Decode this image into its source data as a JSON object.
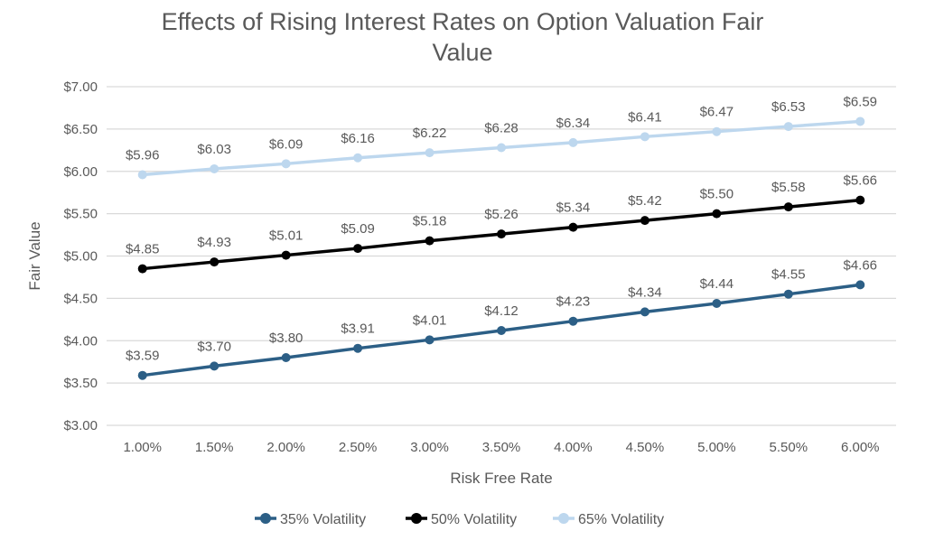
{
  "chart_data": {
    "type": "line",
    "title_lines": [
      "Effects of Rising Interest Rates on Option Valuation Fair",
      "Value"
    ],
    "xlabel": "Risk Free Rate",
    "ylabel": "Fair Value",
    "categories": [
      "1.00%",
      "1.50%",
      "2.00%",
      "2.50%",
      "3.00%",
      "3.50%",
      "4.00%",
      "4.50%",
      "5.00%",
      "5.50%",
      "6.00%"
    ],
    "y_ticks": [
      "$3.00",
      "$3.50",
      "$4.00",
      "$4.50",
      "$5.00",
      "$5.50",
      "$6.00",
      "$6.50",
      "$7.00"
    ],
    "ylim": [
      3.0,
      7.0
    ],
    "grid": true,
    "legend_position": "bottom",
    "series": [
      {
        "name": "35% Volatility",
        "color": "#2c5f86",
        "values": [
          3.59,
          3.7,
          3.8,
          3.91,
          4.01,
          4.12,
          4.23,
          4.34,
          4.44,
          4.55,
          4.66
        ],
        "labels": [
          "$3.59",
          "$3.70",
          "$3.80",
          "$3.91",
          "$4.01",
          "$4.12",
          "$4.23",
          "$4.34",
          "$4.44",
          "$4.55",
          "$4.66"
        ]
      },
      {
        "name": "50% Volatility",
        "color": "#000000",
        "values": [
          4.85,
          4.93,
          5.01,
          5.09,
          5.18,
          5.26,
          5.34,
          5.42,
          5.5,
          5.58,
          5.66
        ],
        "labels": [
          "$4.85",
          "$4.93",
          "$5.01",
          "$5.09",
          "$5.18",
          "$5.26",
          "$5.34",
          "$5.42",
          "$5.50",
          "$5.58",
          "$5.66"
        ]
      },
      {
        "name": "65% Volatility",
        "color": "#bdd7ee",
        "values": [
          5.96,
          6.03,
          6.09,
          6.16,
          6.22,
          6.28,
          6.34,
          6.41,
          6.47,
          6.53,
          6.59
        ],
        "labels": [
          "$5.96",
          "$6.03",
          "$6.09",
          "$6.16",
          "$6.22",
          "$6.28",
          "$6.34",
          "$6.41",
          "$6.47",
          "$6.53",
          "$6.59"
        ]
      }
    ]
  }
}
